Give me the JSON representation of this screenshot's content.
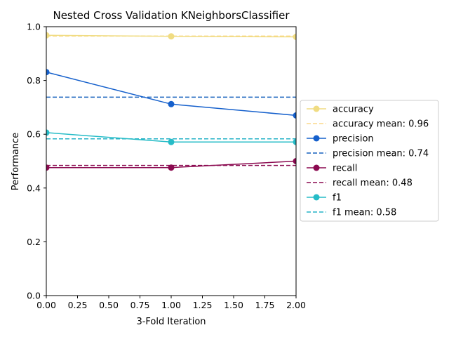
{
  "chart_data": {
    "type": "line",
    "title": "Nested Cross Validation KNeighborsClassifier",
    "xlabel": "3-Fold Iteration",
    "ylabel": "Performance",
    "x": [
      0,
      1,
      2
    ],
    "xlim": [
      0,
      2
    ],
    "ylim": [
      0,
      1
    ],
    "xticks": [
      "0.00",
      "0.25",
      "0.50",
      "0.75",
      "1.00",
      "1.25",
      "1.50",
      "1.75",
      "2.00"
    ],
    "yticks": [
      "0.0",
      "0.2",
      "0.4",
      "0.6",
      "0.8",
      "1.0"
    ],
    "grid": false,
    "legend_position": "right, outside plot",
    "series": [
      {
        "name": "accuracy",
        "values": [
          0.968,
          0.964,
          0.962
        ],
        "color": "#f0dc82",
        "mean": 0.965,
        "mean_label": "accuracy mean: 0.96",
        "mean_color": "#fbd98a"
      },
      {
        "name": "precision",
        "values": [
          0.831,
          0.712,
          0.67
        ],
        "color": "#1560cc",
        "mean": 0.738,
        "mean_label": "precision mean: 0.74",
        "mean_color": "#1560bd"
      },
      {
        "name": "recall",
        "values": [
          0.476,
          0.476,
          0.5
        ],
        "color": "#8b0a50",
        "mean": 0.484,
        "mean_label": "recall mean: 0.48",
        "mean_color": "#8b0a50"
      },
      {
        "name": "f1",
        "values": [
          0.606,
          0.571,
          0.571
        ],
        "color": "#26bcc7",
        "mean": 0.583,
        "mean_label": "f1 mean: 0.58",
        "mean_color": "#26b3c7"
      }
    ]
  }
}
